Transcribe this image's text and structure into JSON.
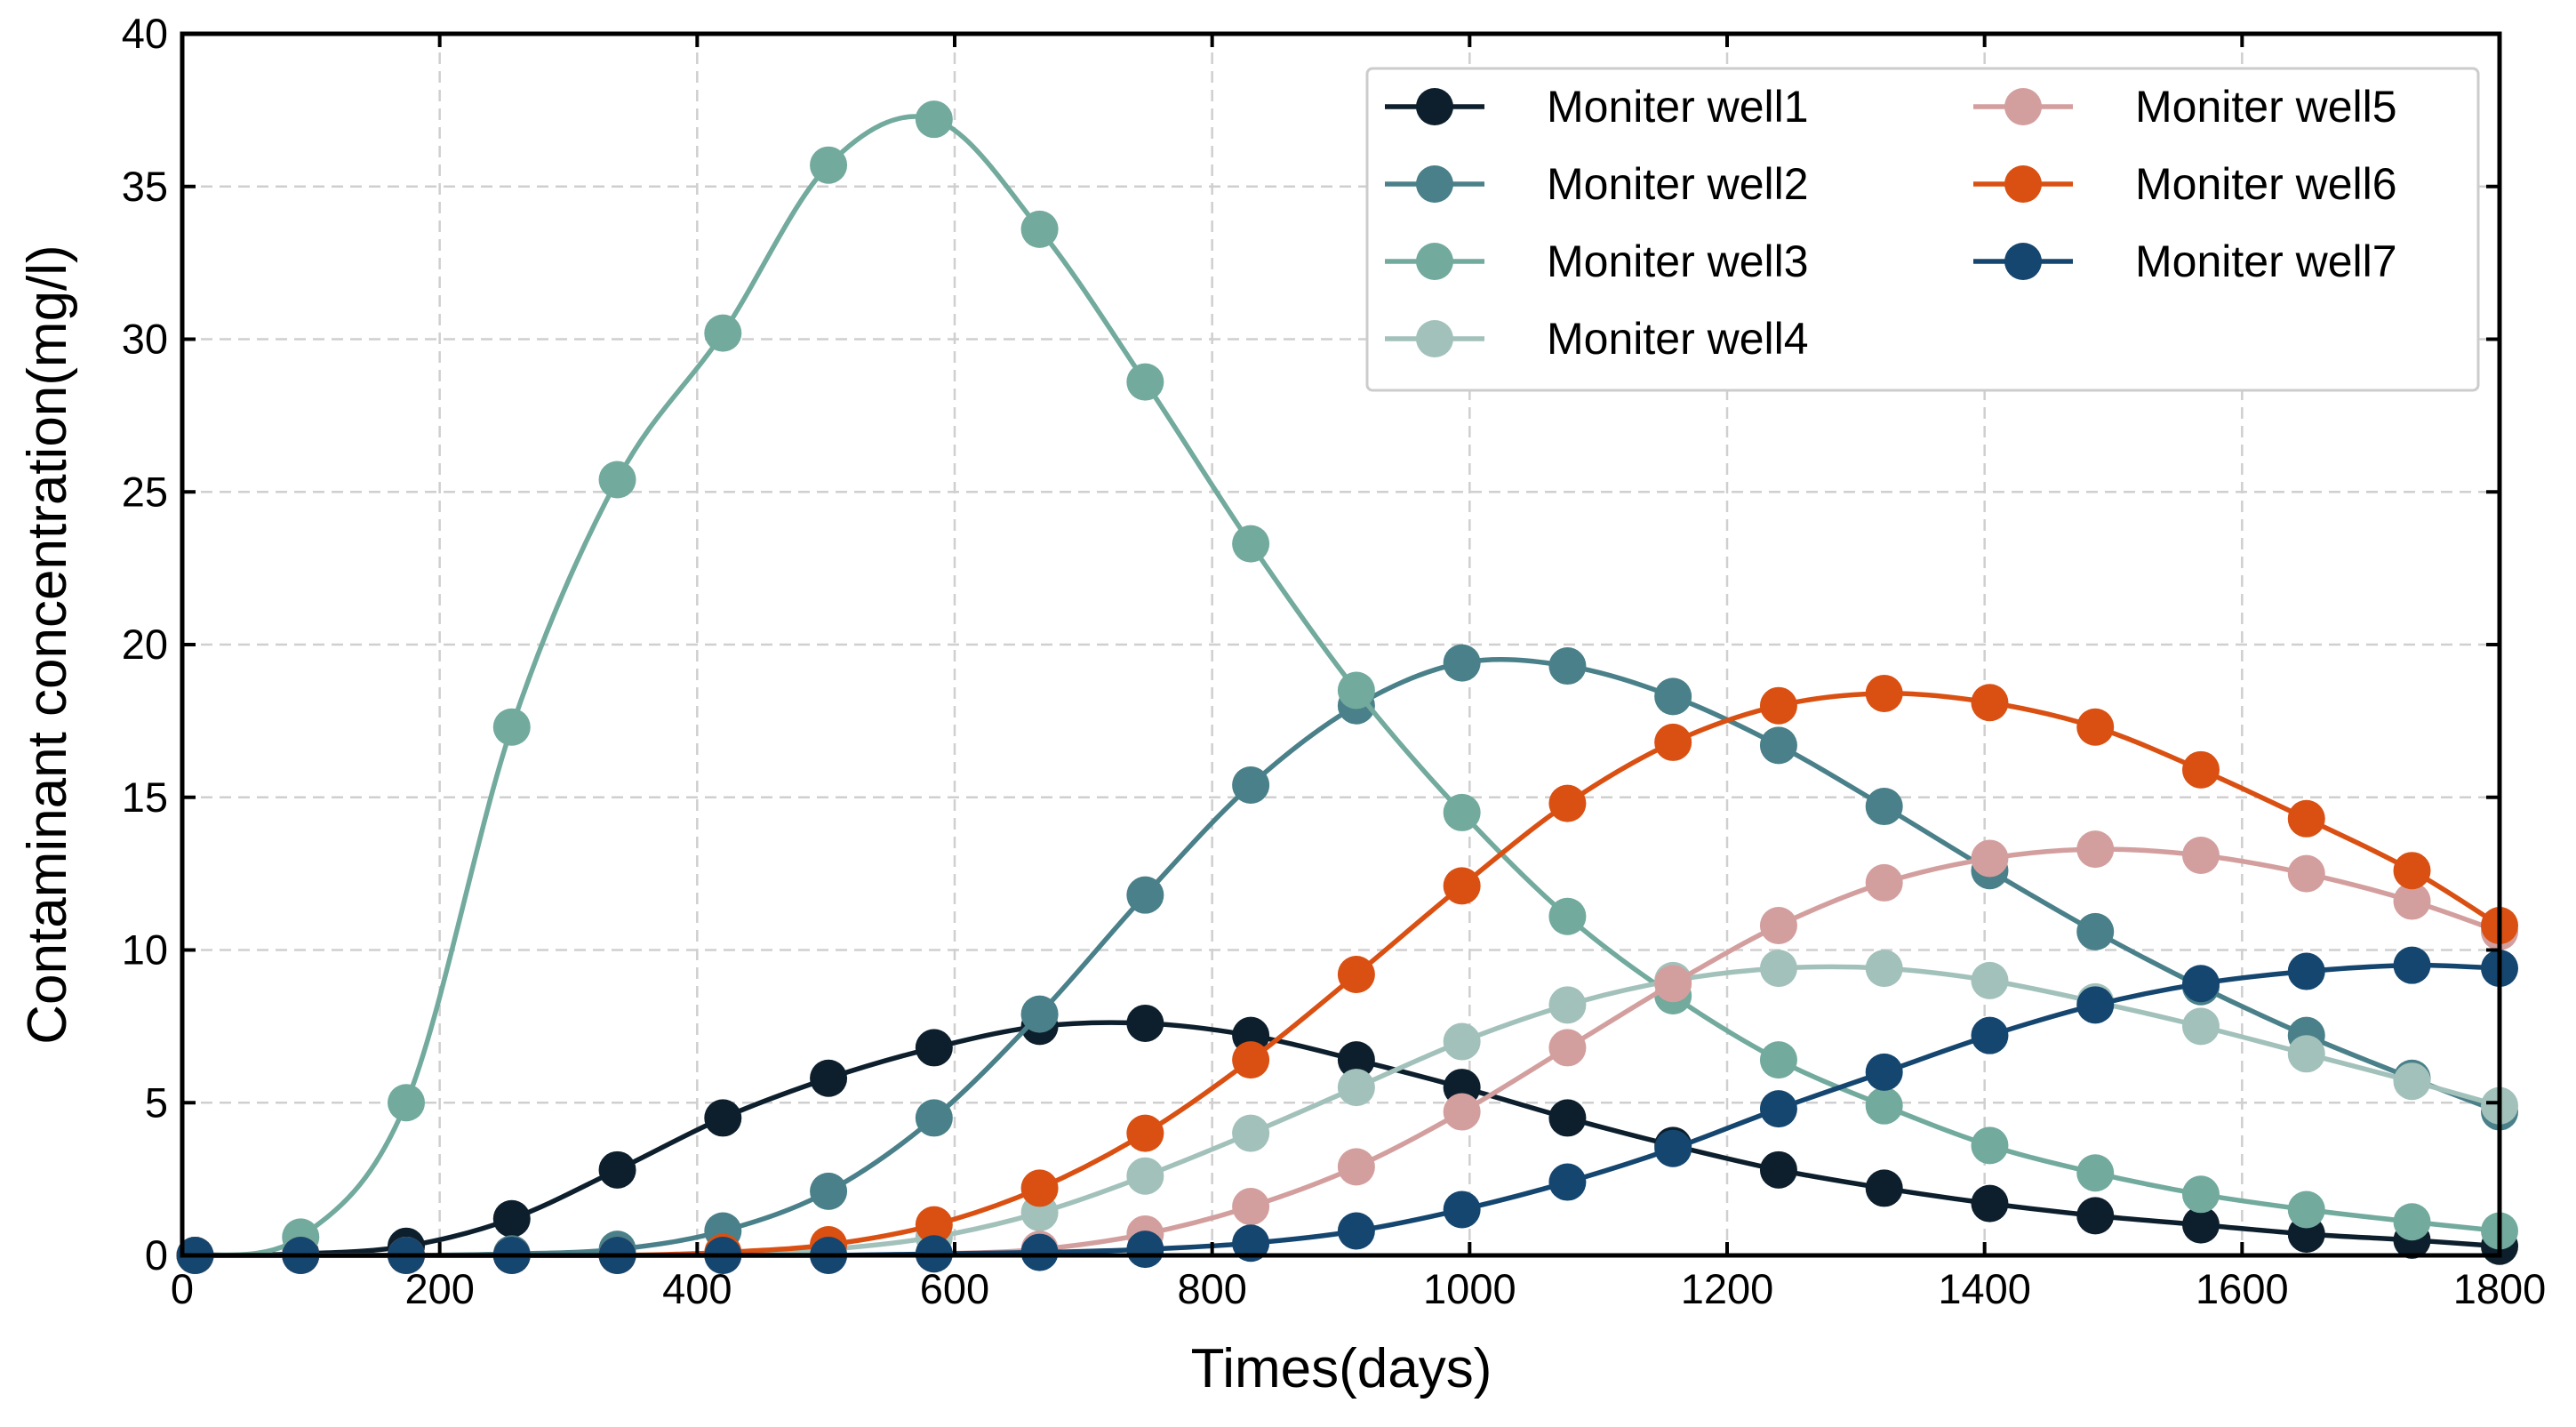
{
  "chart_data": {
    "type": "line",
    "title": "",
    "xlabel": "Times(days)",
    "ylabel": "Contaminant concentration(mg/l)",
    "xlim": [
      0,
      1800
    ],
    "ylim": [
      0,
      40
    ],
    "xticks": [
      0,
      200,
      400,
      600,
      800,
      1000,
      1200,
      1400,
      1600,
      1800
    ],
    "yticks": [
      0,
      5,
      10,
      15,
      20,
      25,
      30,
      35,
      40
    ],
    "xtick_labels": [
      "0",
      "200",
      "400",
      "600",
      "800",
      "1000",
      "1200",
      "1400",
      "1600",
      "1800"
    ],
    "ytick_labels": [
      "0",
      "5",
      "10",
      "15",
      "20",
      "25",
      "30",
      "35",
      "40"
    ],
    "grid": true,
    "legend_position": "top-right",
    "legend_columns": 2,
    "x": [
      10,
      92,
      174,
      256,
      338,
      420,
      502,
      584,
      666,
      748,
      830,
      912,
      994,
      1076,
      1158,
      1240,
      1322,
      1404,
      1486,
      1568,
      1650,
      1732,
      1800
    ],
    "series": [
      {
        "name": "Moniter well1",
        "color": "#0d1f2d",
        "values": [
          0,
          0.05,
          0.3,
          1.2,
          2.8,
          4.5,
          5.8,
          6.8,
          7.5,
          7.6,
          7.2,
          6.4,
          5.5,
          4.5,
          3.6,
          2.8,
          2.2,
          1.7,
          1.3,
          1.0,
          0.7,
          0.5,
          0.3
        ]
      },
      {
        "name": "Moniter well2",
        "color": "#4a8089",
        "values": [
          0,
          0,
          0,
          0.05,
          0.2,
          0.8,
          2.1,
          4.5,
          7.9,
          11.8,
          15.4,
          18.0,
          19.4,
          19.3,
          18.3,
          16.7,
          14.7,
          12.6,
          10.6,
          8.8,
          7.2,
          5.8,
          4.7
        ]
      },
      {
        "name": "Moniter well3",
        "color": "#72aa9d",
        "values": [
          0,
          0.6,
          5.0,
          17.3,
          25.4,
          30.2,
          35.7,
          37.2,
          33.6,
          28.6,
          23.3,
          18.5,
          14.5,
          11.1,
          8.5,
          6.4,
          4.9,
          3.6,
          2.7,
          2.0,
          1.5,
          1.1,
          0.8
        ]
      },
      {
        "name": "Moniter well4",
        "color": "#a2c1ba",
        "values": [
          0,
          0,
          0,
          0,
          0,
          0.05,
          0.2,
          0.6,
          1.4,
          2.6,
          4.0,
          5.5,
          7.0,
          8.2,
          9.0,
          9.4,
          9.4,
          9.0,
          8.3,
          7.5,
          6.6,
          5.7,
          4.9
        ]
      },
      {
        "name": "Moniter well5",
        "color": "#d39f9e",
        "values": [
          0,
          0,
          0,
          0,
          0,
          0,
          0,
          0.05,
          0.2,
          0.7,
          1.6,
          2.9,
          4.7,
          6.8,
          8.9,
          10.8,
          12.2,
          13.0,
          13.3,
          13.1,
          12.5,
          11.6,
          10.6
        ]
      },
      {
        "name": "Moniter well6",
        "color": "#d95012",
        "values": [
          0,
          0,
          0,
          0,
          0,
          0.1,
          0.35,
          1.0,
          2.2,
          4.0,
          6.4,
          9.2,
          12.1,
          14.8,
          16.8,
          18.0,
          18.4,
          18.1,
          17.3,
          15.9,
          14.3,
          12.6,
          10.8
        ]
      },
      {
        "name": "Moniter well7",
        "color": "#15466f",
        "values": [
          0,
          0,
          0,
          0,
          0,
          0,
          0,
          0.05,
          0.1,
          0.2,
          0.4,
          0.8,
          1.5,
          2.4,
          3.5,
          4.8,
          6.0,
          7.2,
          8.2,
          8.9,
          9.3,
          9.5,
          9.4
        ]
      }
    ]
  }
}
